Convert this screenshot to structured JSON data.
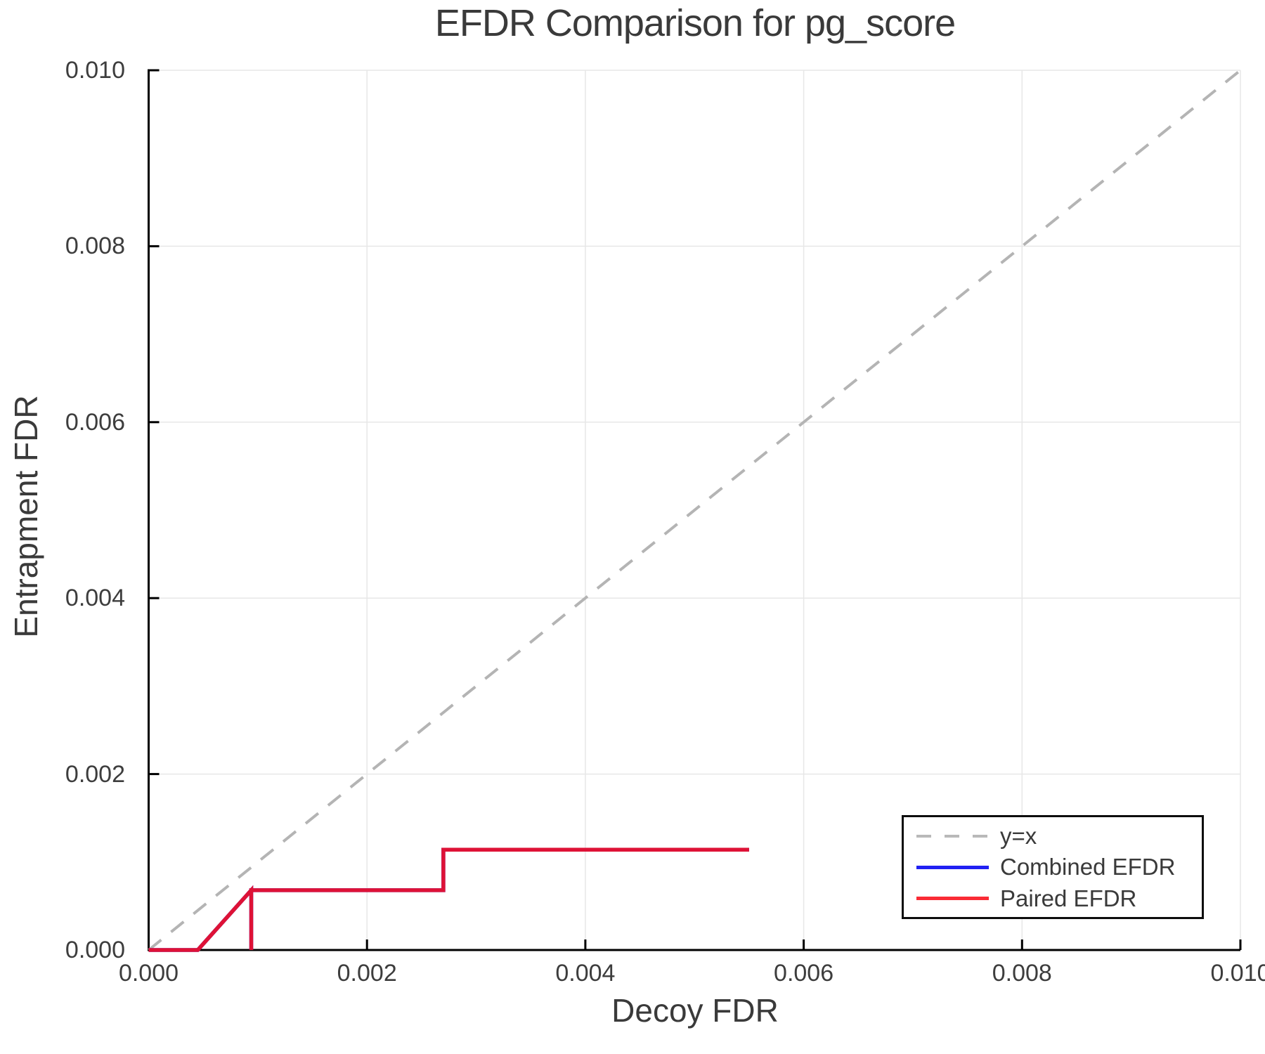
{
  "chart_data": {
    "type": "line",
    "title": "EFDR Comparison for pg_score",
    "xlabel": "Decoy FDR",
    "ylabel": "Entrapment FDR",
    "xlim": [
      0,
      0.01
    ],
    "ylim": [
      0,
      0.01
    ],
    "x_ticks": [
      0,
      0.002,
      0.004,
      0.006,
      0.008,
      0.01
    ],
    "x_tick_labels": [
      "0.000",
      "0.002",
      "0.004",
      "0.006",
      "0.008",
      "0.010"
    ],
    "y_ticks": [
      0,
      0.002,
      0.004,
      0.006,
      0.008,
      0.01
    ],
    "y_tick_labels": [
      "0.000",
      "0.002",
      "0.004",
      "0.006",
      "0.008",
      "0.010"
    ],
    "grid": true,
    "legend_position": "bottom-right",
    "series": [
      {
        "name": "y=x",
        "style": "dashed",
        "color": "#b4b4b4",
        "stroke_width": 4,
        "points": [
          [
            0,
            0
          ],
          [
            0.01,
            0.01
          ]
        ]
      },
      {
        "name": "Combined EFDR",
        "style": "solid",
        "color": "#2121f3",
        "stroke_width": 5.5,
        "hidden_behind_paired": true,
        "points": [
          [
            0,
            0
          ],
          [
            0.00045,
            0
          ],
          [
            0.00094,
            0.00068
          ],
          [
            0.00094,
            0
          ],
          [
            0.00094,
            0.00068
          ],
          [
            0.0027,
            0.00068
          ],
          [
            0.0027,
            0.00114
          ],
          [
            0.0055,
            0.00114
          ]
        ]
      },
      {
        "name": "Paired EFDR",
        "style": "solid",
        "color": "#de1236",
        "stroke_width": 5.5,
        "points": [
          [
            0,
            0
          ],
          [
            0.00045,
            0
          ],
          [
            0.00094,
            0.00068
          ],
          [
            0.00094,
            0
          ],
          [
            0.00094,
            0.00068
          ],
          [
            0.0027,
            0.00068
          ],
          [
            0.0027,
            0.00114
          ],
          [
            0.0055,
            0.00114
          ]
        ]
      }
    ]
  },
  "legend": {
    "items": [
      {
        "label": "y=x",
        "sample": "dashed",
        "color": "#b9b9b9"
      },
      {
        "label": "Combined EFDR",
        "sample": "solid",
        "color": "#2121f3"
      },
      {
        "label": "Paired EFDR",
        "sample": "solid",
        "color": "#fa2b35"
      }
    ]
  },
  "colors": {
    "axis_spine": "#000000",
    "gridline": "#e7e7e7",
    "tick_text": "#3d3d3d",
    "title_text": "#3a3a3a"
  }
}
